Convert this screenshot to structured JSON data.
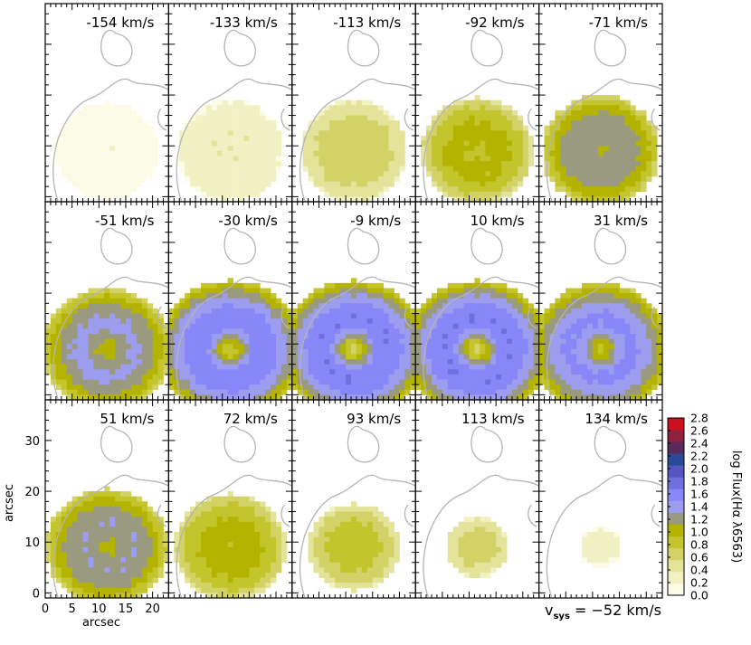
{
  "chart_data": {
    "type": "heatmap",
    "layout": "small-multiples 3x5 channel maps",
    "panels": [
      {
        "velocity_label": "-154 km/s",
        "velocity": -154,
        "peak_log_flux": 0.15,
        "ring_depth": 0.0,
        "radius": 9.5
      },
      {
        "velocity_label": "-133 km/s",
        "velocity": -133,
        "peak_log_flux": 0.35,
        "ring_depth": 0.0,
        "radius": 10.0
      },
      {
        "velocity_label": "-113 km/s",
        "velocity": -113,
        "peak_log_flux": 0.7,
        "ring_depth": 0.0,
        "radius": 10.0
      },
      {
        "velocity_label": "-92 km/s",
        "velocity": -92,
        "peak_log_flux": 1.05,
        "ring_depth": 0.15,
        "radius": 10.5
      },
      {
        "velocity_label": "-71 km/s",
        "velocity": -71,
        "peak_log_flux": 1.35,
        "ring_depth": 0.25,
        "radius": 11.0
      },
      {
        "velocity_label": "-51 km/s",
        "velocity": -51,
        "peak_log_flux": 1.45,
        "ring_depth": 0.45,
        "radius": 12.0
      },
      {
        "velocity_label": "-30 km/s",
        "velocity": -30,
        "peak_log_flux": 1.75,
        "ring_depth": 0.95,
        "radius": 13.5
      },
      {
        "velocity_label": "-9 km/s",
        "velocity": -9,
        "peak_log_flux": 1.8,
        "ring_depth": 1.15,
        "radius": 13.5
      },
      {
        "velocity_label": "10 km/s",
        "velocity": 10,
        "peak_log_flux": 1.8,
        "ring_depth": 1.15,
        "radius": 13.5
      },
      {
        "velocity_label": "31 km/s",
        "velocity": 31,
        "peak_log_flux": 1.65,
        "ring_depth": 0.75,
        "radius": 13.0
      },
      {
        "velocity_label": "51 km/s",
        "velocity": 51,
        "peak_log_flux": 1.4,
        "ring_depth": 0.35,
        "radius": 11.5
      },
      {
        "velocity_label": "72 km/s",
        "velocity": 72,
        "peak_log_flux": 1.05,
        "ring_depth": 0.1,
        "radius": 10.5
      },
      {
        "velocity_label": "93 km/s",
        "velocity": 93,
        "peak_log_flux": 0.85,
        "ring_depth": 0.05,
        "radius": 8.5
      },
      {
        "velocity_label": "113 km/s",
        "velocity": 113,
        "peak_log_flux": 0.65,
        "ring_depth": 0.0,
        "radius": 6.0
      },
      {
        "velocity_label": "134 km/s",
        "velocity": 134,
        "peak_log_flux": 0.3,
        "ring_depth": 0.0,
        "radius": 4.0
      }
    ],
    "source_center_arcsec": [
      11.5,
      9.0
    ],
    "x_axis": {
      "label": "arcsec",
      "range": [
        0,
        23
      ],
      "ticks": [
        "0",
        "5",
        "10",
        "15",
        "20"
      ],
      "tick_values": [
        0,
        5,
        10,
        15,
        20
      ]
    },
    "y_axis": {
      "label": "arcsec",
      "range": [
        -1,
        38
      ],
      "ticks": [
        "0",
        "10",
        "20",
        "30"
      ],
      "tick_values": [
        0,
        10,
        20,
        30
      ]
    },
    "colorbar": {
      "label": "log Flux(Hα λ6563)",
      "range": [
        0.0,
        2.8
      ],
      "tick_labels": [
        "0.0",
        "0.2",
        "0.4",
        "0.6",
        "0.8",
        "1.0",
        "1.2",
        "1.4",
        "1.6",
        "1.8",
        "2.0",
        "2.2",
        "2.4",
        "2.6",
        "2.8"
      ],
      "tick_values": [
        0.0,
        0.2,
        0.4,
        0.6,
        0.8,
        1.0,
        1.2,
        1.4,
        1.6,
        1.8,
        2.0,
        2.2,
        2.4,
        2.6,
        2.8
      ],
      "colors": [
        "#fbfbe6",
        "#f1f1c4",
        "#e3e39a",
        "#d2d266",
        "#c4c42c",
        "#b4b400",
        "#9a9a80",
        "#9d9def",
        "#8787f8",
        "#6f6fe0",
        "#5555c0",
        "#2a4a98",
        "#5a2a5a",
        "#902040",
        "#cc1020"
      ]
    },
    "systemic_velocity_label": "v",
    "systemic_velocity_sub": "sys",
    "systemic_velocity_value": " = −52 km/s",
    "contour_color": "#b4b4b4"
  }
}
